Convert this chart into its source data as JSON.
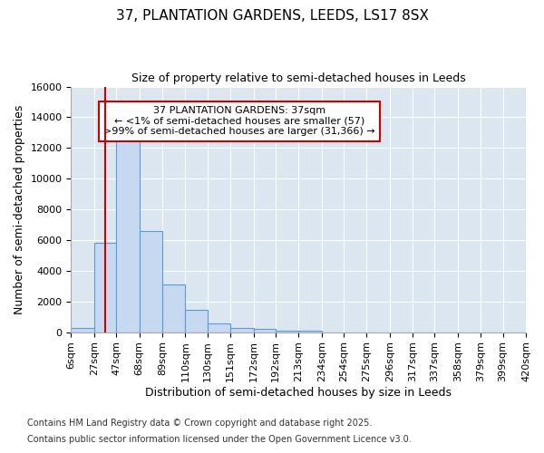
{
  "title1": "37, PLANTATION GARDENS, LEEDS, LS17 8SX",
  "title2": "Size of property relative to semi-detached houses in Leeds",
  "xlabel": "Distribution of semi-detached houses by size in Leeds",
  "ylabel": "Number of semi-detached properties",
  "footer1": "Contains HM Land Registry data © Crown copyright and database right 2025.",
  "footer2": "Contains public sector information licensed under the Open Government Licence v3.0.",
  "annotation_title": "37 PLANTATION GARDENS: 37sqm",
  "annotation_line1": "← <1% of semi-detached houses are smaller (57)",
  "annotation_line2": ">99% of semi-detached houses are larger (31,366) →",
  "property_size": 37,
  "bin_edges": [
    6,
    27,
    47,
    68,
    89,
    110,
    130,
    151,
    172,
    192,
    213,
    234,
    254,
    275,
    296,
    317,
    337,
    358,
    379,
    399,
    420
  ],
  "bar_heights": [
    300,
    5800,
    13100,
    6600,
    3100,
    1450,
    600,
    300,
    200,
    100,
    100,
    0,
    0,
    0,
    0,
    0,
    0,
    0,
    0,
    0
  ],
  "bar_color": "#c6d9f1",
  "bar_edge_color": "#5b9bd5",
  "red_line_color": "#cc0000",
  "annotation_box_color": "#cc0000",
  "plot_bg_color": "#dce6f1",
  "fig_bg_color": "#ffffff",
  "ylim": [
    0,
    16000
  ],
  "yticks": [
    0,
    2000,
    4000,
    6000,
    8000,
    10000,
    12000,
    14000,
    16000
  ],
  "title1_fontsize": 11,
  "title2_fontsize": 9,
  "annotation_fontsize": 8,
  "axis_label_fontsize": 9,
  "tick_fontsize": 8,
  "footer_fontsize": 7
}
